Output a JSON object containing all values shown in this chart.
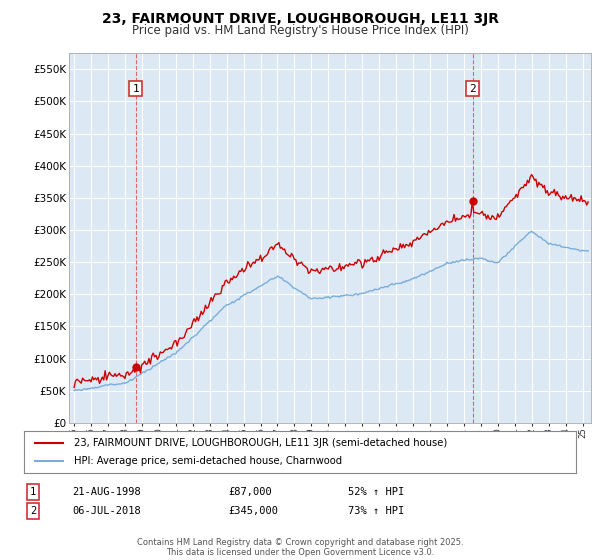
{
  "title": "23, FAIRMOUNT DRIVE, LOUGHBOROUGH, LE11 3JR",
  "subtitle": "Price paid vs. HM Land Registry's House Price Index (HPI)",
  "legend_line1": "23, FAIRMOUNT DRIVE, LOUGHBOROUGH, LE11 3JR (semi-detached house)",
  "legend_line2": "HPI: Average price, semi-detached house, Charnwood",
  "sale1_date": "21-AUG-1998",
  "sale1_price": "£87,000",
  "sale1_hpi": "52% ↑ HPI",
  "sale1_year": 1998.63,
  "sale1_value": 87000,
  "sale2_date": "06-JUL-2018",
  "sale2_price": "£345,000",
  "sale2_hpi": "73% ↑ HPI",
  "sale2_year": 2018.51,
  "sale2_value": 345000,
  "footer": "Contains HM Land Registry data © Crown copyright and database right 2025.\nThis data is licensed under the Open Government Licence v3.0.",
  "ylim": [
    0,
    575000
  ],
  "yticks": [
    0,
    50000,
    100000,
    150000,
    200000,
    250000,
    300000,
    350000,
    400000,
    450000,
    500000,
    550000
  ],
  "xlim_start": 1994.7,
  "xlim_end": 2025.5,
  "line_color_red": "#cc0000",
  "line_color_blue": "#7aaddb",
  "bg_color": "#ffffff",
  "chart_bg_color": "#dce9f5",
  "grid_color": "#ffffff",
  "point_color_red": "#cc0000",
  "dashed_color": "#dd4444",
  "box_border_color": "#cc3333",
  "title_fontsize": 10,
  "subtitle_fontsize": 8.5
}
